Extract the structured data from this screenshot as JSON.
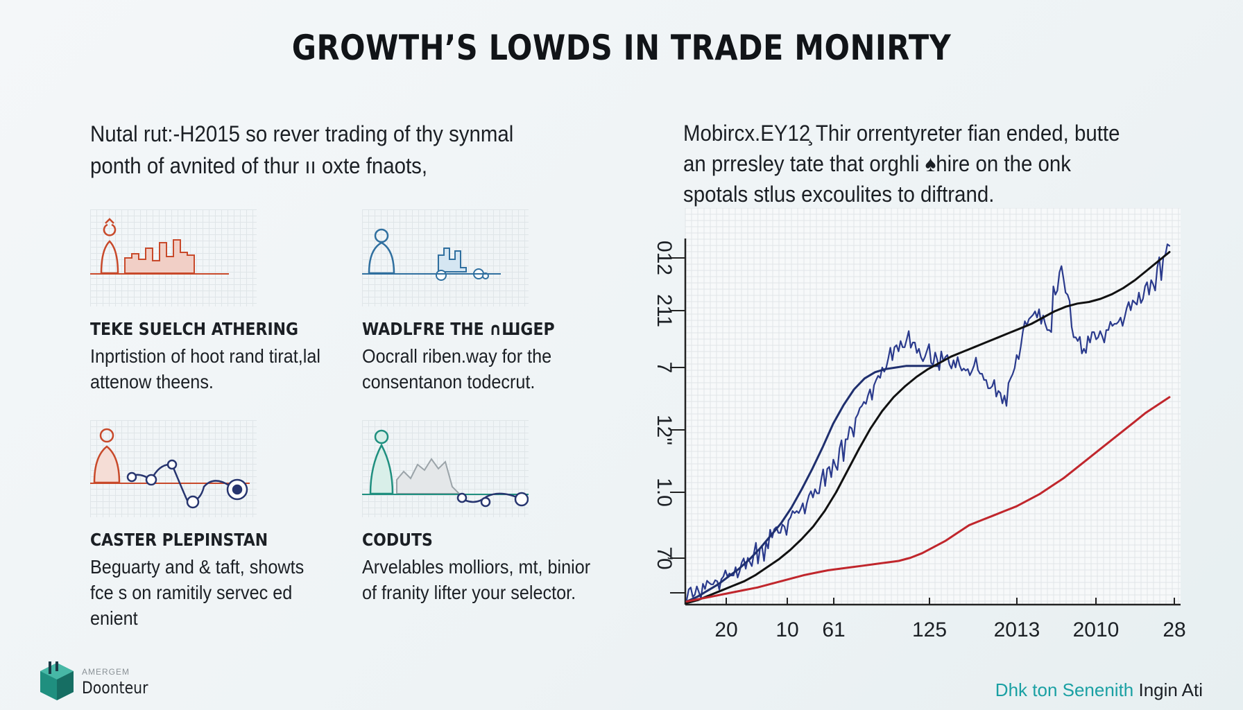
{
  "title": "GROWTH’S LOWDS IN TRADE MONIRTY",
  "intro_left": "Nutal rut:-H2015 so rever trading of thy synmal ponth of avnited of thur ıı oxte fnaots,",
  "intro_right": "Mobircx.EY12̧ Thir orrentyreter fian ended, butte an prresley tate that orghli ♠hire on the onk spotals stlus excoulites to diftrand.",
  "cards": [
    {
      "heading": "TEKE SUELCH ATHERING",
      "body": "Inprtistion of hoot rand tirat,lal attenow theens.",
      "accent": "#c8492a"
    },
    {
      "heading": "WADLFRE THE ∩ШGEP",
      "body": "Oocrall riben.way for the consentanon todecrut.",
      "accent": "#2f6f9f"
    },
    {
      "heading": "CASTER PLEPINSTAN",
      "body": "Beguarty and & taft, showts fce s on ramitily servec ed enient",
      "accent": "#c8492a"
    },
    {
      "heading": "CODUTS",
      "body": "Arvelables molliors, mt, binior of franity lifter your selector.",
      "accent": "#1f8f7f"
    }
  ],
  "chart_data": {
    "type": "line",
    "x_tick_labels": [
      "20",
      "10",
      "61",
      "125",
      "2013",
      "2010",
      "28"
    ],
    "y_tick_labels": [
      "7̓0",
      "1.0",
      "12\"",
      "7",
      "211",
      "012"
    ],
    "grid": true,
    "series": [
      {
        "color": "#2a3a8c",
        "style": "volatile",
        "values": [
          0.3,
          0.5,
          0.8,
          1.0,
          1.3,
          1.5,
          1.8,
          2.0,
          2.4,
          2.7,
          3.0,
          3.3,
          3.6,
          4.0,
          4.3,
          4.6,
          5.0,
          5.6,
          6.0,
          6.5,
          7.0,
          7.4,
          8.0,
          8.7,
          9.3,
          10.0,
          10.6,
          11.3,
          12.2,
          13.0,
          13.8,
          14.4,
          15.2,
          15.8,
          16.5,
          16.9,
          17.0,
          16.8,
          16.4,
          15.9,
          15.5,
          15.7,
          15.6,
          15.4,
          15.2,
          15.0,
          15.1,
          15.3,
          14.8,
          14.4,
          14.0,
          13.7,
          13.4,
          14.5,
          16.0,
          17.5,
          18.3,
          18.8,
          18.0,
          17.6,
          20.4,
          21.3,
          20.0,
          17.8,
          16.9,
          16.4,
          16.8,
          17.0,
          17.2,
          17.6,
          18.0,
          18.4,
          19.0,
          19.5,
          20.0,
          20.4,
          20.8,
          21.6,
          22.3,
          23.0
        ]
      },
      {
        "color": "#1f2f6e",
        "style": "smooth",
        "values": [
          0.2,
          0.5,
          0.9,
          1.3,
          1.8,
          2.3,
          2.9,
          3.6,
          4.4,
          5.2,
          6.2,
          7.4,
          8.7,
          10.1,
          11.6,
          12.8,
          13.8,
          14.5,
          14.9,
          15.1,
          15.2,
          15.3,
          15.3,
          15.3,
          15.3
        ]
      },
      {
        "color": "#111111",
        "style": "smooth",
        "values": [
          0.1,
          0.3,
          0.6,
          0.9,
          1.2,
          1.5,
          1.9,
          2.4,
          2.9,
          3.5,
          4.2,
          5.0,
          6.0,
          7.2,
          8.6,
          10.0,
          11.3,
          12.4,
          13.3,
          14.0,
          14.6,
          15.1,
          15.5,
          15.9,
          16.2,
          16.5,
          16.8,
          17.1,
          17.4,
          17.7,
          18.0,
          18.4,
          18.8,
          19.1,
          19.3,
          19.4,
          19.6,
          19.9,
          20.3,
          20.8,
          21.4,
          22.0,
          22.6
        ]
      },
      {
        "color": "#c0262c",
        "style": "smooth",
        "values": [
          0.2,
          0.35,
          0.5,
          0.65,
          0.8,
          0.95,
          1.1,
          1.3,
          1.5,
          1.7,
          1.9,
          2.05,
          2.2,
          2.3,
          2.4,
          2.5,
          2.6,
          2.7,
          2.8,
          3.0,
          3.3,
          3.7,
          4.1,
          4.6,
          5.1,
          5.4,
          5.7,
          6.0,
          6.3,
          6.7,
          7.1,
          7.6,
          8.1,
          8.7,
          9.3,
          9.9,
          10.5,
          11.1,
          11.7,
          12.3,
          12.8,
          13.3
        ]
      }
    ],
    "ylim": [
      0,
      24
    ]
  },
  "footer": {
    "logo_small": "AMERGEM",
    "logo_name": "Doonteur",
    "right_teal": "Dhk ton Senenith",
    "right_dark": " Ingin Ati"
  }
}
